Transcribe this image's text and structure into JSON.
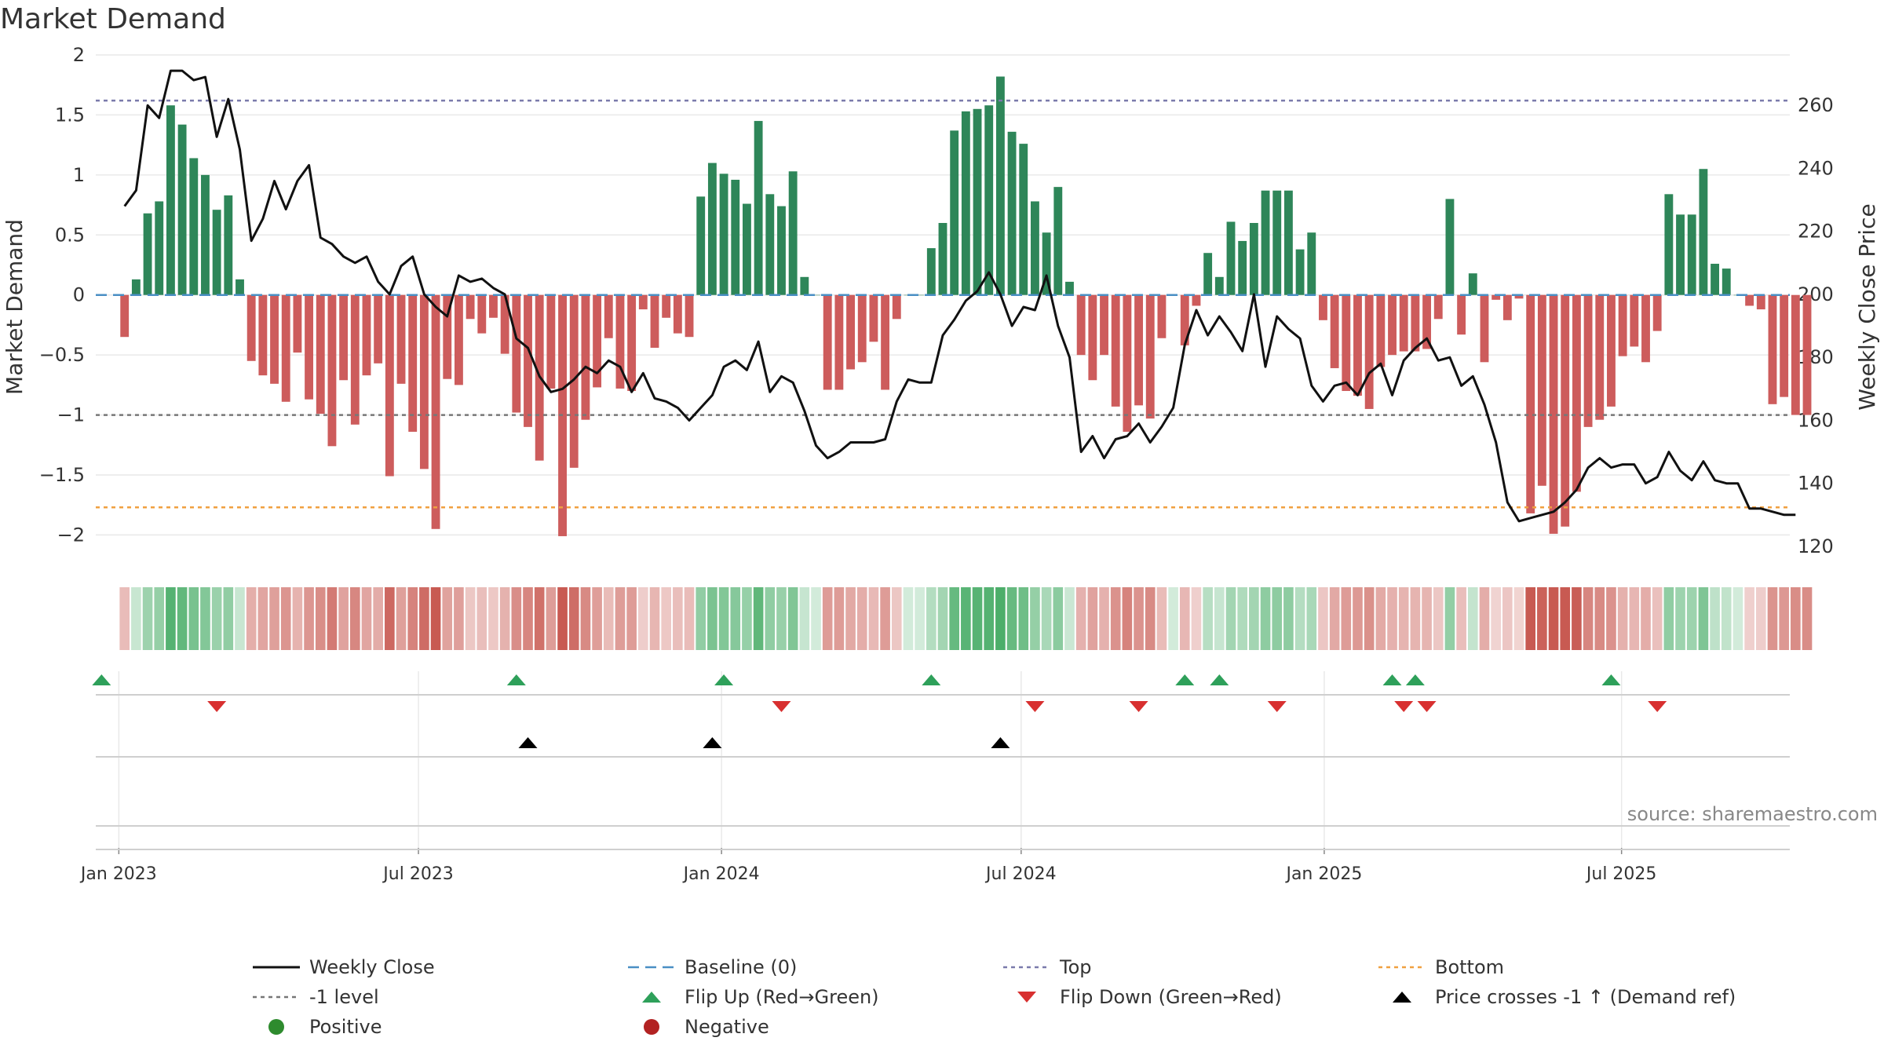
{
  "chart_data": {
    "type": "bar",
    "title": "Market Demand",
    "ylabel": "Market Demand",
    "y2label": "Weekly Close Price",
    "ylim": [
      -2.2,
      2.0
    ],
    "y2lim": [
      116,
      276
    ],
    "yticks": [
      2,
      1.5,
      1,
      0.5,
      0,
      -0.5,
      -1,
      -1.5,
      -2
    ],
    "ytick_labels": [
      "2",
      "1.5",
      "1",
      "0.5",
      "0",
      "−0.5",
      "−1",
      "−1.5",
      "−2"
    ],
    "y2ticks": [
      260,
      240,
      220,
      200,
      180,
      160,
      140,
      120
    ],
    "y2tick_labels": [
      "260",
      "240",
      "220",
      "200",
      "180",
      "160",
      "140",
      "120"
    ],
    "x_start_week_offset": -2,
    "date_ticks": [
      {
        "label": "Jan 2023",
        "week": 0
      },
      {
        "label": "Jul 2023",
        "week": 26
      },
      {
        "label": "Jan 2024",
        "week": 52.3
      },
      {
        "label": "Jul 2024",
        "week": 78.3
      },
      {
        "label": "Jan 2025",
        "week": 104.6
      },
      {
        "label": "Jul 2025",
        "week": 130.4
      }
    ],
    "reference_lines": {
      "top": 1.62,
      "bottom": -1.77,
      "minus_one": -1,
      "baseline": 0
    },
    "demand": [
      -0.35,
      0.13,
      0.68,
      0.78,
      1.58,
      1.42,
      1.14,
      1.0,
      0.71,
      0.83,
      0.13,
      -0.55,
      -0.67,
      -0.74,
      -0.89,
      -0.48,
      -0.87,
      -0.99,
      -1.26,
      -0.71,
      -1.08,
      -0.67,
      -0.57,
      -1.51,
      -0.74,
      -1.14,
      -1.45,
      -1.95,
      -0.7,
      -0.75,
      -0.2,
      -0.32,
      -0.19,
      -0.49,
      -0.98,
      -1.1,
      -1.38,
      -0.78,
      -2.01,
      -1.44,
      -1.04,
      -0.77,
      -0.36,
      -0.78,
      -0.8,
      -0.12,
      -0.44,
      -0.19,
      -0.32,
      -0.35,
      0.82,
      1.1,
      1.01,
      0.96,
      0.76,
      1.45,
      0.84,
      0.74,
      1.03,
      0.15,
      0.0,
      -0.79,
      -0.79,
      -0.62,
      -0.56,
      -0.39,
      -0.79,
      -0.2,
      0.0,
      0.0,
      0.39,
      0.6,
      1.37,
      1.53,
      1.55,
      1.58,
      1.82,
      1.36,
      1.26,
      0.78,
      0.52,
      0.9,
      0.11,
      -0.5,
      -0.71,
      -0.5,
      -0.93,
      -1.14,
      -0.92,
      -1.03,
      -0.36,
      -0.0,
      -0.42,
      -0.09,
      0.35,
      0.15,
      0.61,
      0.45,
      0.6,
      0.87,
      0.87,
      0.87,
      0.38,
      0.52,
      -0.21,
      -0.61,
      -0.8,
      -0.84,
      -0.95,
      -0.6,
      -0.5,
      -0.47,
      -0.47,
      -0.45,
      -0.2,
      0.8,
      -0.33,
      0.18,
      -0.56,
      -0.04,
      -0.21,
      -0.03,
      -1.82,
      -1.59,
      -1.99,
      -1.93,
      -1.64,
      -1.1,
      -1.04,
      -0.93,
      -0.51,
      -0.43,
      -0.56,
      -0.3,
      0.84,
      0.67,
      0.67,
      1.05,
      0.26,
      0.22,
      0.0,
      -0.09,
      -0.12,
      -0.91,
      -0.85,
      -1.0,
      -1.0
    ],
    "price": [
      228,
      233,
      260,
      256,
      271,
      271,
      268,
      269,
      250,
      262,
      246,
      217,
      224,
      236,
      227,
      236,
      241,
      218,
      216,
      212,
      210,
      212,
      204,
      200,
      209,
      212,
      200,
      196,
      193,
      206,
      204,
      205,
      202,
      200,
      186,
      183,
      174,
      169,
      170,
      173,
      177,
      175,
      179,
      177,
      169,
      175,
      167,
      166,
      164,
      160,
      164,
      168,
      177,
      179,
      176,
      185,
      169,
      174,
      172,
      163,
      152,
      148,
      150,
      153,
      153,
      153,
      154,
      166,
      173,
      172,
      172,
      187,
      192,
      198,
      201,
      207,
      200,
      190,
      196,
      195,
      206,
      190,
      180,
      150,
      155,
      148,
      154,
      155,
      159,
      153,
      158,
      164,
      184,
      195,
      187,
      193,
      188,
      182,
      200,
      177,
      193,
      189,
      186,
      171,
      166,
      171,
      172,
      168,
      175,
      178,
      168,
      179,
      183,
      186,
      179,
      180,
      171,
      174,
      165,
      153,
      134,
      128,
      129,
      130,
      131,
      134,
      138,
      145,
      148,
      145,
      146,
      146,
      140,
      142,
      150,
      144,
      141,
      147,
      141,
      140,
      140,
      132,
      132,
      131,
      130,
      130
    ],
    "flip_up_weeks": [
      -1.5,
      34.5,
      52.5,
      70.5,
      92.5,
      95.5,
      110.5,
      112.5,
      129.5
    ],
    "flip_down_weeks": [
      8.5,
      57.5,
      79.5,
      88.5,
      100.5,
      111.5,
      113.5,
      133.5
    ],
    "price_cross_weeks": [
      35.5,
      51.5,
      76.5
    ],
    "legend": [
      {
        "label": "Weekly Close",
        "kind": "line",
        "color": "#111111"
      },
      {
        "label": "Baseline (0)",
        "kind": "dash",
        "color": "#4a8fc4"
      },
      {
        "label": "Top",
        "kind": "dot",
        "color": "#7a7aab"
      },
      {
        "label": "Bottom",
        "kind": "dot",
        "color": "#f0a040"
      },
      {
        "label": "-1 level",
        "kind": "dot",
        "color": "#777777"
      },
      {
        "label": "Flip Up (Red→Green)",
        "kind": "up",
        "color": "#2ea05a"
      },
      {
        "label": "Flip Down (Green→Red)",
        "kind": "down",
        "color": "#d83030"
      },
      {
        "label": "Price crosses -1 ↑ (Demand ref)",
        "kind": "up",
        "color": "#000000"
      },
      {
        "label": "Positive",
        "kind": "circle",
        "color": "#2e8b2e"
      },
      {
        "label": "Negative",
        "kind": "circle",
        "color": "#b22222"
      }
    ],
    "source": "source: sharemaestro.com"
  },
  "colors": {
    "positive_bar": "#2e8659",
    "negative_bar": "#cd5c5c",
    "price_line": "#111111",
    "baseline": "#4a8fc4",
    "top_line": "#7a7aab",
    "bottom_line": "#f0a040",
    "minus_one_line": "#777777",
    "flip_up": "#2ea05a",
    "flip_down": "#d83030",
    "price_cross": "#000000",
    "grid": "#e9e9e9"
  }
}
